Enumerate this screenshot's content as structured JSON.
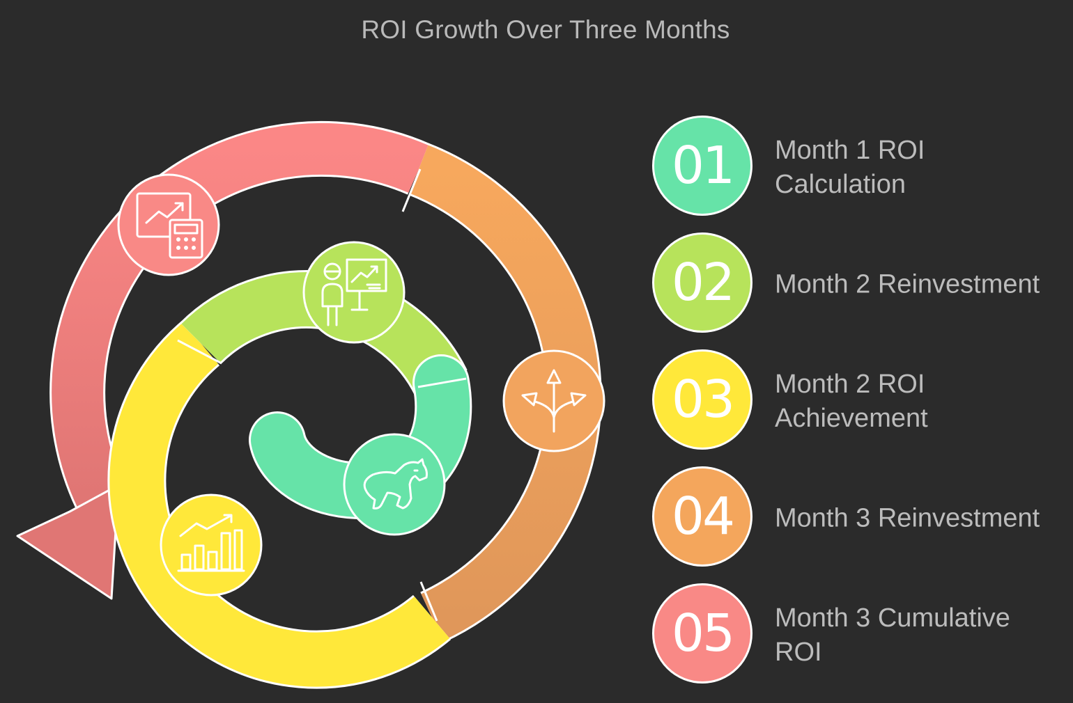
{
  "title": "ROI Growth Over Three Months",
  "colors": {
    "background": "#2b2b2b",
    "step1": "#66e3a8",
    "step2": "#b7e35b",
    "step3": "#ffe83a",
    "step4": "#f4a65c",
    "step5": "#f98986",
    "title_text": "#b9b9b9",
    "label_text": "#bcbcbc"
  },
  "steps": [
    {
      "number": "01",
      "label": "Month 1 ROI\nCalculation",
      "icon": "bear-icon"
    },
    {
      "number": "02",
      "label": "Month 2 Reinvestment",
      "icon": "presenter-chart-icon"
    },
    {
      "number": "03",
      "label": "Month 2 ROI\nAchievement",
      "icon": "bar-chart-growth-icon"
    },
    {
      "number": "04",
      "label": "Month 3 Reinvestment",
      "icon": "split-arrows-icon"
    },
    {
      "number": "05",
      "label": "Month 3 Cumulative\nROI",
      "icon": "chart-calculator-icon"
    }
  ]
}
